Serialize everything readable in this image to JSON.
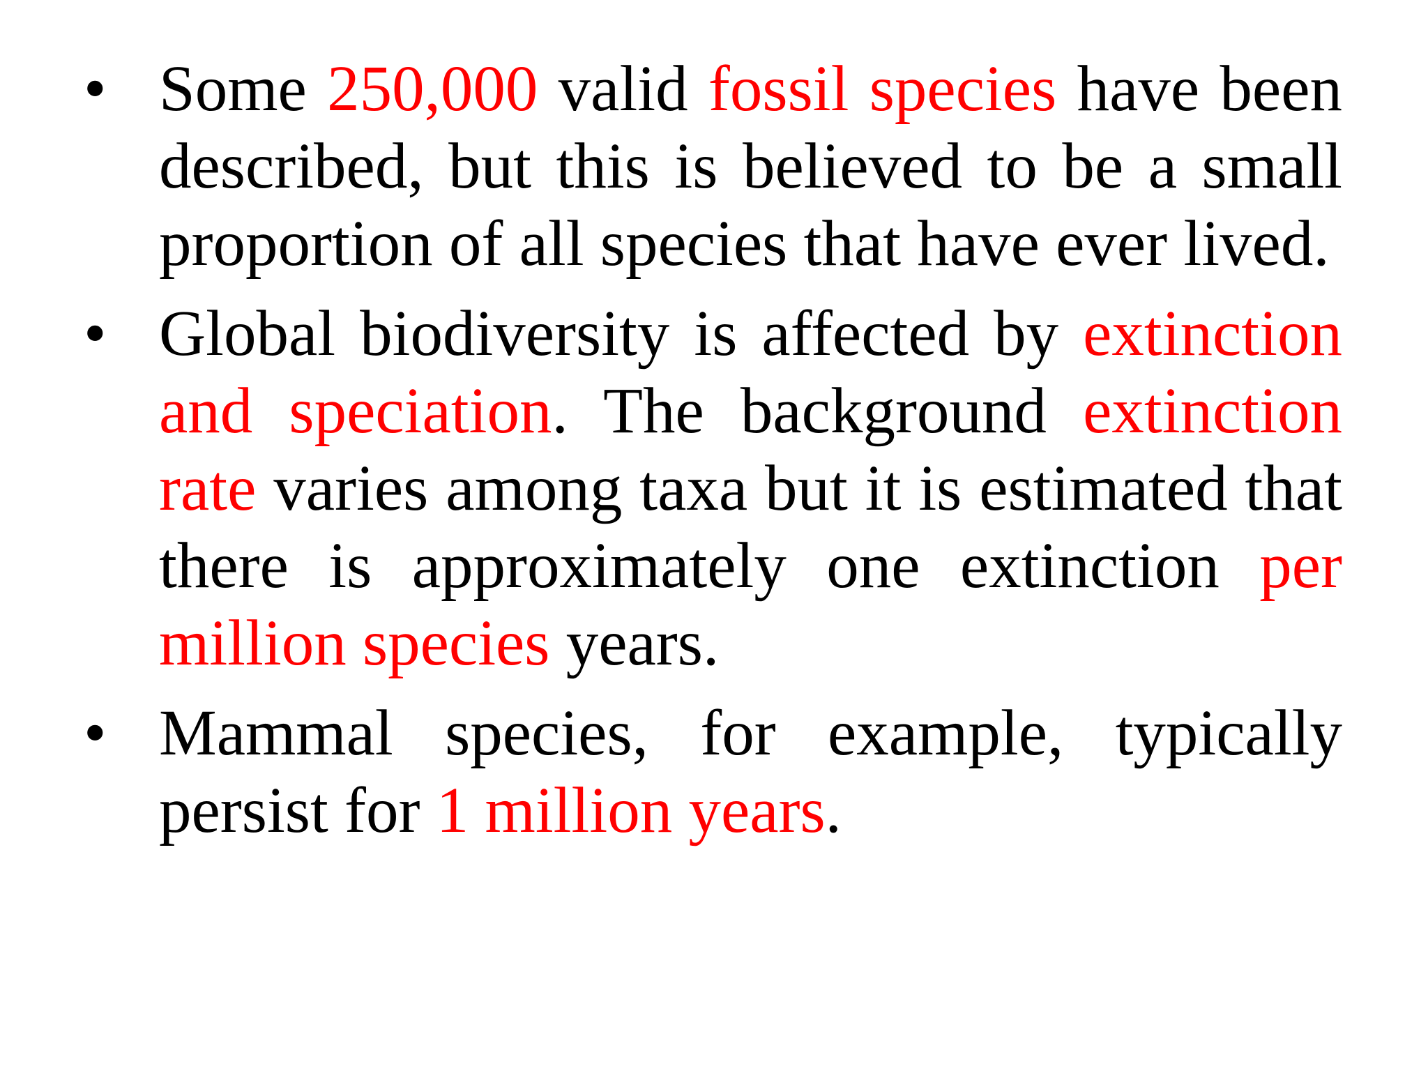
{
  "colors": {
    "text": "#000000",
    "highlight": "#ff0000",
    "background": "#ffffff"
  },
  "bullet_symbol": "•",
  "bullets": [
    {
      "segments": [
        {
          "text": "Some ",
          "highlight": false
        },
        {
          "text": "250,000",
          "highlight": true
        },
        {
          "text": " valid ",
          "highlight": false
        },
        {
          "text": "fossil species",
          "highlight": true
        },
        {
          "text": " have been described, but this is believed to be a small proportion of all species that have ever lived.",
          "highlight": false
        }
      ]
    },
    {
      "segments": [
        {
          "text": "Global biodiversity is affected by ",
          "highlight": false
        },
        {
          "text": "extinction and speciation",
          "highlight": true
        },
        {
          "text": ". The background ",
          "highlight": false
        },
        {
          "text": "extinction rate",
          "highlight": true
        },
        {
          "text": " varies among taxa but it is estimated that there is approximately one extinction ",
          "highlight": false
        },
        {
          "text": "per million species",
          "highlight": true
        },
        {
          "text": " years.",
          "highlight": false
        }
      ]
    },
    {
      "segments": [
        {
          "text": "Mammal species, for example, typically persist for ",
          "highlight": false
        },
        {
          "text": "1 million years",
          "highlight": true
        },
        {
          "text": ".",
          "highlight": false
        }
      ]
    }
  ]
}
